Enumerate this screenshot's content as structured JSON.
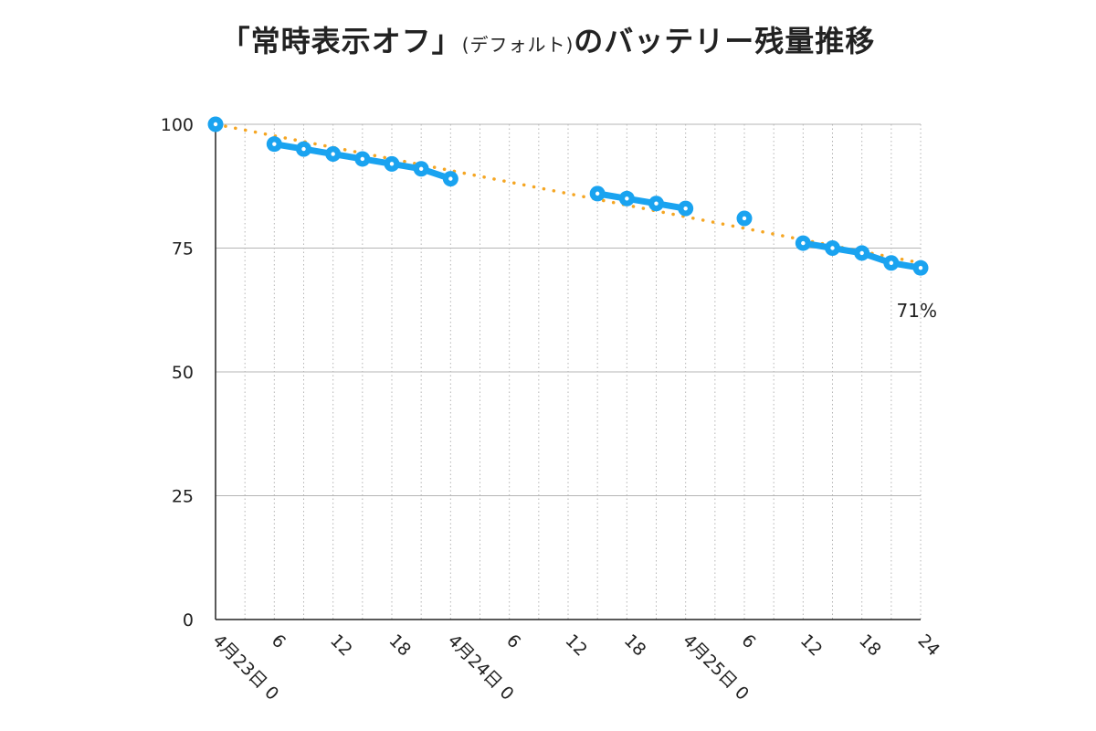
{
  "chart_data": {
    "type": "line",
    "title": {
      "main_a": "「常時表示オフ」",
      "sub": "(デフォルト)",
      "main_b": "のバッテリー残量推移"
    },
    "xlabel": "",
    "ylabel": "",
    "xlim": [
      0,
      72
    ],
    "ylim": [
      0,
      100
    ],
    "y_ticks": [
      0,
      25,
      50,
      75,
      100
    ],
    "x_ticks": [
      {
        "x": 0,
        "label": "4月23日 0"
      },
      {
        "x": 6,
        "label": "6"
      },
      {
        "x": 12,
        "label": "12"
      },
      {
        "x": 18,
        "label": "18"
      },
      {
        "x": 24,
        "label": "4月24日 0"
      },
      {
        "x": 30,
        "label": "6"
      },
      {
        "x": 36,
        "label": "12"
      },
      {
        "x": 42,
        "label": "18"
      },
      {
        "x": 48,
        "label": "4月25日 0"
      },
      {
        "x": 54,
        "label": "6"
      },
      {
        "x": 60,
        "label": "12"
      },
      {
        "x": 66,
        "label": "18"
      },
      {
        "x": 72,
        "label": "24"
      }
    ],
    "grid": {
      "horizontal": true,
      "vertical_dotted_every_hours": 3
    },
    "segments": [
      {
        "points": [
          [
            0,
            100
          ]
        ]
      },
      {
        "points": [
          [
            6,
            96
          ],
          [
            9,
            95
          ],
          [
            12,
            94
          ],
          [
            15,
            93
          ],
          [
            18,
            92
          ],
          [
            21,
            91
          ],
          [
            24,
            89
          ]
        ]
      },
      {
        "points": [
          [
            39,
            86
          ],
          [
            42,
            85
          ],
          [
            45,
            84
          ],
          [
            48,
            83
          ]
        ]
      },
      {
        "points": [
          [
            54,
            81
          ]
        ]
      },
      {
        "points": [
          [
            60,
            76
          ],
          [
            63,
            75
          ],
          [
            66,
            74
          ],
          [
            69,
            72
          ],
          [
            72,
            71
          ]
        ]
      }
    ],
    "trendline": {
      "from": [
        0,
        100
      ],
      "to": [
        72,
        72
      ],
      "style": "dotted"
    },
    "end_label": "71%",
    "colors": {
      "series": "#1aa3f0",
      "trend": "#f5a623",
      "grid": "#b5b5b5",
      "axis": "#222222"
    }
  }
}
